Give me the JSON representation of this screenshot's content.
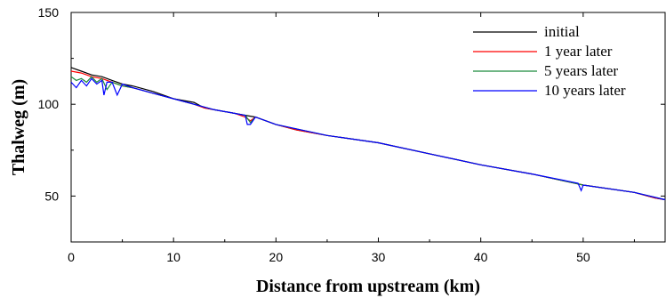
{
  "chart_data": {
    "type": "line",
    "xlabel": "Distance from upstream (km)",
    "ylabel": "Thalweg (m)",
    "xlim": [
      0,
      58
    ],
    "ylim": [
      25,
      150
    ],
    "xticks": [
      0,
      10,
      20,
      30,
      40,
      50
    ],
    "yticks": [
      50,
      100,
      150
    ],
    "grid": false,
    "legend_position": "top-right",
    "series": [
      {
        "name": "initial",
        "color": "#000000",
        "x": [
          0,
          1,
          2,
          3,
          4,
          5,
          6,
          8,
          10,
          12,
          13,
          14,
          16,
          17,
          18,
          20,
          22,
          25,
          30,
          35,
          40,
          45,
          50,
          55,
          57,
          58
        ],
        "y": [
          120,
          118,
          116,
          115,
          113,
          111,
          110,
          107,
          103,
          101,
          98,
          97,
          95,
          94,
          93,
          89,
          86,
          83,
          79,
          73,
          67,
          62,
          56,
          52,
          49,
          48
        ]
      },
      {
        "name": "1 year later",
        "color": "#ff0000",
        "x": [
          0,
          1,
          2,
          3,
          4,
          5,
          6,
          8,
          10,
          12,
          13,
          14,
          16,
          17,
          17.5,
          18,
          20,
          22,
          25,
          30,
          35,
          40,
          45,
          50,
          55,
          57,
          58
        ],
        "y": [
          118,
          117,
          115,
          114,
          112,
          110,
          109,
          106,
          103,
          100,
          98,
          97,
          95,
          93,
          91,
          93,
          89,
          86,
          83,
          79,
          73,
          67,
          62,
          56,
          52,
          49,
          48
        ]
      },
      {
        "name": "5 years later",
        "color": "#1a8a3c",
        "x": [
          0,
          0.5,
          1,
          1.5,
          2,
          2.5,
          3,
          3.5,
          4,
          4.5,
          5,
          6,
          8,
          10,
          12,
          14,
          16,
          17,
          17.5,
          18,
          20,
          25,
          30,
          35,
          40,
          45,
          50,
          55,
          58
        ],
        "y": [
          115,
          113,
          114,
          112,
          115,
          112,
          114,
          108,
          112,
          111,
          110,
          109,
          106,
          103,
          100,
          97,
          95,
          94,
          90,
          93,
          89,
          83,
          79,
          73,
          67,
          62,
          56,
          52,
          48
        ]
      },
      {
        "name": "10 years later",
        "color": "#0000ff",
        "x": [
          0,
          0.5,
          1,
          1.5,
          2,
          2.5,
          3,
          3.2,
          3.5,
          4,
          4.5,
          5,
          6,
          8,
          10,
          12,
          14,
          16,
          17,
          17.2,
          17.5,
          18,
          20,
          25,
          30,
          35,
          40,
          45,
          49.5,
          49.8,
          50,
          55,
          58
        ],
        "y": [
          112,
          109,
          113,
          110,
          114,
          111,
          113,
          105,
          112,
          112,
          105,
          111,
          109,
          106,
          103,
          100,
          97,
          95,
          94,
          89,
          89,
          93,
          89,
          83,
          79,
          73,
          67,
          62,
          57,
          53,
          56,
          52,
          48
        ]
      }
    ]
  }
}
